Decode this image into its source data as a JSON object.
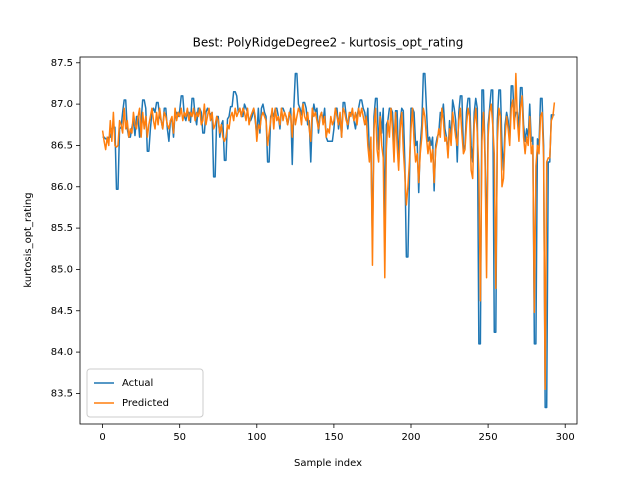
{
  "chart_data": {
    "type": "line",
    "title": "Best: PolyRidgeDegree2 - kurtosis_opt_rating",
    "x_label": "Sample index",
    "y_label": "kurtosis_opt_rating",
    "xlim": [
      -14.65,
      307.65
    ],
    "xticks": [
      0,
      50,
      100,
      150,
      200,
      250,
      300
    ],
    "ylim": [
      83.13,
      87.57
    ],
    "yticks": [
      {
        "value": 83.5,
        "label": "83.5"
      },
      {
        "value": 84,
        "label": "84.0"
      },
      84.5,
      {
        "value": 85,
        "label": "85.0"
      },
      85.5,
      {
        "value": 86,
        "label": "86.0"
      },
      86.5,
      {
        "value": 87,
        "label": "87.0"
      },
      87.5
    ],
    "legend": "lower left",
    "series": [
      {
        "name": "Actual",
        "color": "#1f77b4",
        "values": [
          86.6,
          86.6,
          86.58,
          86.58,
          86.6,
          86.6,
          86.7,
          86.72,
          86.72,
          85.97,
          85.97,
          86.7,
          86.72,
          86.9,
          87.05,
          87.05,
          86.7,
          86.6,
          86.6,
          86.72,
          86.8,
          86.62,
          86.85,
          86.85,
          86.6,
          86.8,
          87.05,
          87.05,
          86.95,
          86.43,
          86.43,
          86.7,
          86.9,
          86.95,
          86.9,
          87.02,
          87.02,
          86.85,
          86.8,
          86.7,
          86.95,
          86.95,
          86.7,
          86.55,
          86.8,
          86.8,
          86.6,
          86.9,
          86.9,
          86.85,
          86.92,
          87.1,
          87.1,
          86.85,
          86.8,
          86.9,
          86.9,
          86.78,
          87.07,
          87.07,
          86.85,
          86.75,
          86.95,
          86.95,
          86.9,
          86.65,
          86.65,
          86.9,
          86.95,
          86.9,
          86.87,
          86.9,
          86.12,
          86.12,
          86.85,
          86.85,
          86.6,
          86.75,
          86.8,
          86.32,
          86.32,
          86.82,
          86.85,
          86.97,
          86.97,
          87.15,
          87.15,
          87.1,
          86.9,
          86.95,
          86.85,
          86.85,
          87.0,
          86.95,
          86.9,
          86.8,
          86.8,
          86.85,
          86.95,
          86.8,
          86.62,
          86.95,
          86.65,
          86.95,
          87.0,
          86.9,
          86.85,
          86.3,
          86.3,
          86.85,
          86.9,
          86.85,
          86.95,
          86.95,
          86.85,
          86.7,
          86.95,
          86.95,
          86.9,
          86.85,
          86.75,
          86.85,
          86.95,
          86.27,
          86.95,
          87.37,
          87.37,
          87.0,
          86.95,
          86.87,
          87.02,
          87.02,
          86.95,
          86.75,
          86.8,
          86.3,
          86.85,
          87.0,
          86.9,
          86.95,
          86.65,
          86.85,
          86.9,
          86.8,
          86.95,
          86.6,
          86.55,
          86.55,
          86.55,
          86.55,
          86.7,
          86.95,
          86.95,
          86.7,
          86.85,
          86.6,
          87.02,
          87.02,
          86.85,
          86.7,
          86.85,
          86.9,
          86.9,
          86.8,
          86.7,
          86.85,
          86.95,
          87.05,
          87.05,
          86.95,
          86.9,
          86.75,
          86.95,
          86.4,
          86.45,
          85.35,
          86.85,
          87.07,
          87.07,
          86.45,
          86.9,
          86.65,
          86.95,
          85.57,
          86.75,
          86.8,
          86.95,
          86.95,
          86.9,
          86.5,
          86.92,
          86.92,
          86.25,
          86.8,
          86.95,
          86.92,
          86.3,
          85.15,
          85.15,
          86.1,
          86.95,
          86.95,
          86.9,
          86.5,
          86.55,
          85.93,
          86.5,
          86.75,
          87.37,
          87.37,
          86.95,
          86.55,
          86.6,
          86.5,
          86.6,
          85.95,
          86.5,
          86.6,
          86.65,
          86.9,
          86.85,
          87.0,
          86.7,
          86.6,
          86.4,
          86.8,
          86.55,
          87.05,
          86.95,
          86.8,
          86.3,
          86.9,
          87.1,
          87.1,
          86.45,
          86.5,
          86.9,
          87.07,
          87.07,
          86.5,
          86.3,
          86.9,
          87.07,
          86.95,
          84.1,
          84.1,
          87.17,
          87.17,
          86.4,
          85.27,
          86.75,
          86.95,
          87.17,
          87.17,
          84.24,
          84.24,
          86.8,
          87.17,
          87.17,
          86.5,
          86.2,
          86.75,
          86.9,
          86.8,
          86.55,
          87.22,
          87.22,
          86.8,
          86.9,
          86.9,
          86.7,
          87.2,
          87.2,
          86.75,
          86.55,
          86.7,
          86.6,
          87.0,
          86.55,
          86.6,
          84.1,
          84.1,
          86.58,
          86.5,
          87.07,
          87.07,
          86.5,
          83.33,
          83.33,
          86.3,
          86.3,
          86.87,
          86.87,
          86.87
        ]
      },
      {
        "name": "Predicted",
        "color": "#ff7f0e",
        "values": [
          86.68,
          86.55,
          86.45,
          86.6,
          86.5,
          86.8,
          86.55,
          86.9,
          86.5,
          86.48,
          86.5,
          86.8,
          86.75,
          86.65,
          86.95,
          86.7,
          86.8,
          86.6,
          86.7,
          86.65,
          86.9,
          86.75,
          86.7,
          86.85,
          86.95,
          86.6,
          86.9,
          86.7,
          86.85,
          86.6,
          86.75,
          86.85,
          86.95,
          86.8,
          86.7,
          86.9,
          86.75,
          86.95,
          86.8,
          86.7,
          86.9,
          86.85,
          86.75,
          86.7,
          86.8,
          86.85,
          86.65,
          86.95,
          86.8,
          86.9,
          86.85,
          86.95,
          86.8,
          86.9,
          86.85,
          86.95,
          86.8,
          86.9,
          86.85,
          86.95,
          86.8,
          86.9,
          86.85,
          86.95,
          86.75,
          86.8,
          87.0,
          86.75,
          86.85,
          86.95,
          86.8,
          86.9,
          86.7,
          86.75,
          86.85,
          86.8,
          86.65,
          86.75,
          86.6,
          86.55,
          86.6,
          86.75,
          86.7,
          86.85,
          86.9,
          86.8,
          86.95,
          86.85,
          86.9,
          86.95,
          86.85,
          86.95,
          86.9,
          86.8,
          86.95,
          86.75,
          86.85,
          86.9,
          86.95,
          86.85,
          86.55,
          86.75,
          86.7,
          86.85,
          86.9,
          86.85,
          86.8,
          86.5,
          86.65,
          86.8,
          86.95,
          86.7,
          86.95,
          86.8,
          86.85,
          86.75,
          86.95,
          86.8,
          86.9,
          86.85,
          86.75,
          86.9,
          86.85,
          86.6,
          86.95,
          86.75,
          86.85,
          86.95,
          86.9,
          86.75,
          87.0,
          86.85,
          86.8,
          86.9,
          86.7,
          86.55,
          86.95,
          86.85,
          86.9,
          86.8,
          86.7,
          86.85,
          86.9,
          86.75,
          86.85,
          86.6,
          86.7,
          86.65,
          86.85,
          86.75,
          86.8,
          86.95,
          86.85,
          86.75,
          86.9,
          86.6,
          86.95,
          86.9,
          86.8,
          86.75,
          86.9,
          86.85,
          86.95,
          86.8,
          86.9,
          86.75,
          86.95,
          86.85,
          86.95,
          86.85,
          86.75,
          86.85,
          86.5,
          86.3,
          86.6,
          85.05,
          86.7,
          86.95,
          86.45,
          86.3,
          86.85,
          86.5,
          86.35,
          84.9,
          86.45,
          86.8,
          86.6,
          86.95,
          86.7,
          86.3,
          86.9,
          86.5,
          86.2,
          86.7,
          86.9,
          86.45,
          86.15,
          85.78,
          86.0,
          86.3,
          86.7,
          86.95,
          86.55,
          86.3,
          86.4,
          86.05,
          86.4,
          86.6,
          86.95,
          86.85,
          86.6,
          86.4,
          86.55,
          86.3,
          86.45,
          86.05,
          86.45,
          86.55,
          86.7,
          86.6,
          86.95,
          86.8,
          86.55,
          86.6,
          86.35,
          86.7,
          86.5,
          86.9,
          86.75,
          86.6,
          86.5,
          86.8,
          86.95,
          86.65,
          86.4,
          86.45,
          86.75,
          86.95,
          86.85,
          86.2,
          86.1,
          86.75,
          86.95,
          86.65,
          86.2,
          84.62,
          86.55,
          86.9,
          86.35,
          84.9,
          86.6,
          86.9,
          87.0,
          86.75,
          86.4,
          84.77,
          86.55,
          86.95,
          86.85,
          86.0,
          86.1,
          86.6,
          86.85,
          86.7,
          86.5,
          86.95,
          87.05,
          86.7,
          87.37,
          86.8,
          86.55,
          86.95,
          87.1,
          86.6,
          86.4,
          86.6,
          86.5,
          86.85,
          86.4,
          86.5,
          84.48,
          86.25,
          86.5,
          86.4,
          86.85,
          86.9,
          86.35,
          83.55,
          86.3,
          86.35,
          86.35,
          86.8,
          86.85,
          87.02
        ]
      }
    ]
  }
}
